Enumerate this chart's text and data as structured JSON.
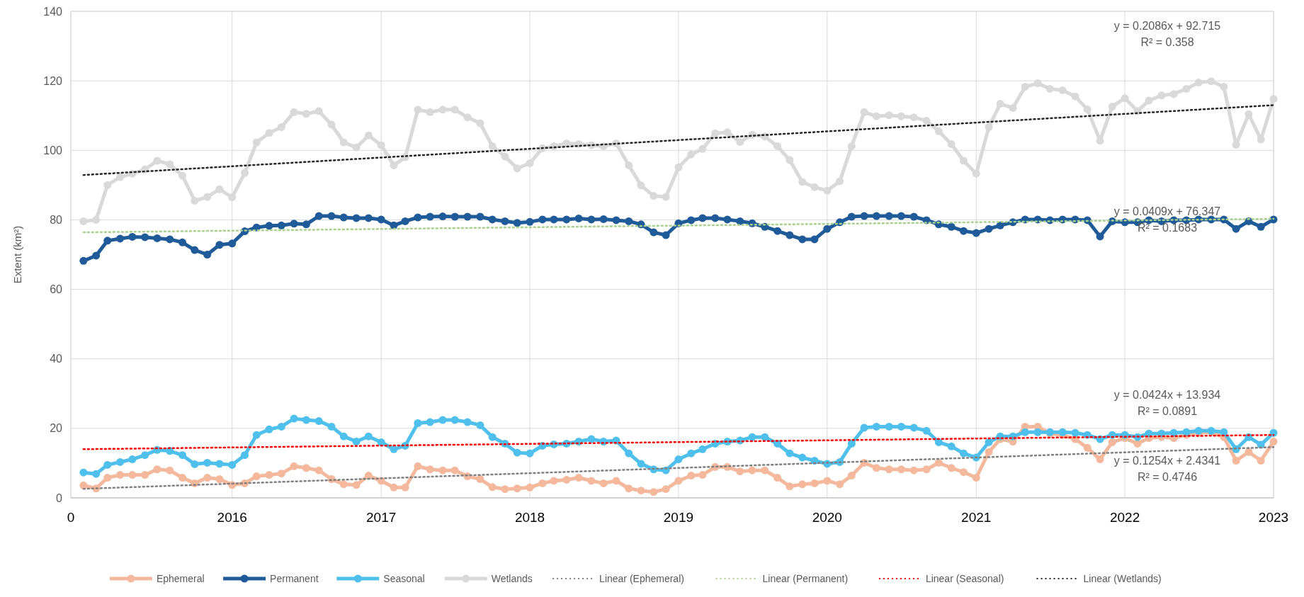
{
  "chart_data": {
    "type": "line",
    "ylabel": "Extent (km²)",
    "xlim": [
      "2014-12",
      "2023-01"
    ],
    "ylim": [
      0,
      140
    ],
    "xticks": [
      {
        "value": "2014-12",
        "label": "0"
      },
      "2016",
      "2017",
      "2018",
      "2019",
      "2020",
      "2021",
      "2022",
      "2023"
    ],
    "yticks": [
      0,
      20,
      40,
      60,
      80,
      100,
      120,
      140
    ],
    "grid": true,
    "legend": "bottom",
    "marker": "circle",
    "line_style": "solid",
    "x": [
      "2015-01",
      "2015-02",
      "2015-03",
      "2015-04",
      "2015-05",
      "2015-06",
      "2015-07",
      "2015-08",
      "2015-09",
      "2015-10",
      "2015-11",
      "2015-12",
      "2016-01",
      "2016-02",
      "2016-03",
      "2016-04",
      "2016-05",
      "2016-06",
      "2016-07",
      "2016-08",
      "2016-09",
      "2016-10",
      "2016-11",
      "2016-12",
      "2017-01",
      "2017-02",
      "2017-03",
      "2017-04",
      "2017-05",
      "2017-06",
      "2017-07",
      "2017-08",
      "2017-09",
      "2017-10",
      "2017-11",
      "2017-12",
      "2018-01",
      "2018-02",
      "2018-03",
      "2018-04",
      "2018-05",
      "2018-06",
      "2018-07",
      "2018-08",
      "2018-09",
      "2018-10",
      "2018-11",
      "2018-12",
      "2019-01",
      "2019-02",
      "2019-03",
      "2019-04",
      "2019-05",
      "2019-06",
      "2019-07",
      "2019-08",
      "2019-09",
      "2019-10",
      "2019-11",
      "2019-12",
      "2020-01",
      "2020-02",
      "2020-03",
      "2020-04",
      "2020-05",
      "2020-06",
      "2020-07",
      "2020-08",
      "2020-09",
      "2020-10",
      "2020-11",
      "2020-12",
      "2021-01",
      "2021-02",
      "2021-03",
      "2021-04",
      "2021-05",
      "2021-06",
      "2021-07",
      "2021-08",
      "2021-09",
      "2021-10",
      "2021-11",
      "2021-12",
      "2022-01",
      "2022-02",
      "2022-03",
      "2022-04",
      "2022-05",
      "2022-06",
      "2022-07",
      "2022-08",
      "2022-09",
      "2022-10",
      "2022-11",
      "2022-12",
      "2023-01"
    ],
    "series": [
      {
        "name": "Ephemeral",
        "color": "#f4b99c",
        "values": [
          3.6,
          2.7,
          5.8,
          6.6,
          6.6,
          6.6,
          8.2,
          7.9,
          5.8,
          4.2,
          5.8,
          5.4,
          3.7,
          4.2,
          6.2,
          6.6,
          7,
          9.1,
          8.6,
          7.9,
          5.4,
          3.9,
          3.7,
          6.4,
          4.9,
          3,
          3,
          9.1,
          8.2,
          7.9,
          7.9,
          6.2,
          5.4,
          3.1,
          2.5,
          2.7,
          3,
          4.2,
          4.9,
          5.2,
          5.8,
          4.9,
          4.2,
          4.9,
          2.7,
          2.1,
          1.7,
          2.5,
          4.9,
          6.4,
          6.6,
          8.9,
          8.9,
          7.6,
          7.9,
          7.9,
          5.8,
          3.3,
          3.9,
          4.2,
          4.9,
          3.9,
          6.4,
          10.1,
          8.6,
          8.2,
          8.2,
          7.9,
          8.2,
          10.1,
          8.6,
          7.4,
          5.8,
          13.2,
          16.9,
          16.2,
          20.5,
          20.5,
          18.5,
          18.1,
          16.9,
          14.4,
          11.1,
          16,
          17.2,
          15.6,
          17.2,
          17.5,
          17.2,
          18.1,
          18.7,
          18.9,
          17.5,
          10.7,
          13.2,
          10.7,
          16.2
        ]
      },
      {
        "name": "Permanent",
        "color": "#1f5b98",
        "values": [
          68.2,
          69.7,
          74,
          74.6,
          75.1,
          75,
          74.7,
          74.4,
          73.5,
          71.3,
          70,
          72.8,
          73.2,
          76.7,
          77.8,
          78.3,
          78.4,
          78.9,
          78.7,
          81.1,
          81.1,
          80.7,
          80.5,
          80.5,
          80.1,
          78.4,
          79.6,
          80.7,
          80.9,
          81,
          80.9,
          80.9,
          80.9,
          80.1,
          79.6,
          79.1,
          79.4,
          80.1,
          80.1,
          80.1,
          80.4,
          80.1,
          80.2,
          79.9,
          79.6,
          78.7,
          76.4,
          75.6,
          79,
          79.9,
          80.5,
          80.5,
          80.1,
          79.6,
          79,
          78,
          76.8,
          75.6,
          74.4,
          74.4,
          77.4,
          79.3,
          80.9,
          81.1,
          81.1,
          81.1,
          81.1,
          80.9,
          79.9,
          78.7,
          78,
          76.8,
          76.2,
          77.4,
          78.4,
          79.3,
          80.1,
          80.1,
          79.9,
          80.1,
          80.1,
          79.9,
          75.2,
          79.6,
          79.3,
          79.3,
          79.9,
          79.6,
          79.9,
          79.9,
          80.1,
          80.1,
          80.1,
          77.4,
          79.6,
          78,
          80.1
        ]
      },
      {
        "name": "Seasonal",
        "color": "#4fc0ec",
        "values": [
          7.3,
          6.9,
          9.5,
          10.3,
          11.1,
          12.3,
          13.8,
          13.5,
          12.3,
          9.7,
          10.1,
          9.8,
          9.5,
          12.3,
          18.1,
          19.7,
          20.5,
          22.8,
          22.4,
          22.1,
          20.5,
          17.7,
          16.2,
          17.7,
          16,
          14,
          15,
          21.5,
          21.8,
          22.4,
          22.4,
          21.8,
          20.9,
          17.5,
          15.6,
          13,
          12.8,
          15,
          15.4,
          15.6,
          16.2,
          16.9,
          16.2,
          16.5,
          12.8,
          9.8,
          8.2,
          7.9,
          11.1,
          12.8,
          14,
          15.6,
          16.2,
          16.5,
          17.5,
          17.5,
          15.6,
          12.8,
          11.6,
          10.7,
          9.8,
          10.3,
          15.6,
          20.2,
          20.5,
          20.5,
          20.5,
          20.2,
          19.3,
          16,
          14.8,
          12.8,
          11.6,
          16,
          17.7,
          17.7,
          18.9,
          18.9,
          18.9,
          18.9,
          18.7,
          18.1,
          16.9,
          18.1,
          18.1,
          17.5,
          18.5,
          18.5,
          18.7,
          18.9,
          19.3,
          19.3,
          18.9,
          14,
          17.5,
          15.3,
          18.7
        ]
      },
      {
        "name": "Wetlands",
        "color": "#d9d9d9",
        "values": [
          79.6,
          80,
          90,
          92.3,
          93.3,
          94.5,
          97,
          96,
          92.7,
          85.5,
          86.6,
          88.8,
          86.5,
          93.5,
          102.3,
          105,
          106.7,
          111,
          110.5,
          111.3,
          107.4,
          102.3,
          100.8,
          104.3,
          101.5,
          95.7,
          98,
          111.7,
          111,
          111.7,
          111.7,
          109.5,
          107.8,
          101.2,
          98.2,
          94.8,
          96.3,
          100.6,
          101.2,
          102,
          101.8,
          101.5,
          101.2,
          102,
          95.7,
          89.9,
          86.9,
          86.6,
          95.1,
          98.8,
          100.4,
          104.9,
          105.2,
          102.4,
          104.5,
          104,
          101.2,
          97.2,
          90.9,
          89.4,
          88.4,
          91.1,
          101.2,
          111,
          109.8,
          110.1,
          109.8,
          109.5,
          108.5,
          105.5,
          101.8,
          97,
          93.3,
          106.7,
          113.4,
          112.2,
          118.3,
          119.3,
          117.7,
          117.3,
          115.5,
          111.8,
          102.8,
          112.6,
          115,
          111.3,
          114.3,
          115.8,
          116.2,
          117.7,
          119.5,
          119.9,
          118.3,
          101.6,
          110.4,
          103.1,
          114.8
        ]
      },
      {
        "name": "Linear (Ephemeral)",
        "color": "#808080",
        "marker": "none",
        "line_style": "dotted",
        "x": [
          "2015-01",
          "2023-01"
        ],
        "values": [
          2.6,
          14.6
        ]
      },
      {
        "name": "Linear (Permanent)",
        "color": "#a9d18e",
        "marker": "none",
        "line_style": "dotted",
        "x": [
          "2015-01",
          "2023-01"
        ],
        "values": [
          76.4,
          80.3
        ]
      },
      {
        "name": "Linear (Seasonal)",
        "color": "#ff0000",
        "marker": "none",
        "line_style": "dotted",
        "x": [
          "2015-01",
          "2023-01"
        ],
        "values": [
          14,
          18.1
        ]
      },
      {
        "name": "Linear (Wetlands)",
        "color": "#262626",
        "marker": "none",
        "line_style": "dotted",
        "x": [
          "2015-01",
          "2023-01"
        ],
        "values": [
          92.9,
          113
        ]
      }
    ],
    "annotations": [
      "y = 0.2086x + 92.715",
      "R² = 0.358",
      "y = 0.0409x + 76.347",
      "R² = 0.1683",
      "y = 0.0424x + 13.934",
      "R² = 0.0891",
      "y = 0.1254x + 2.4341",
      "R² = 0.4746"
    ]
  }
}
